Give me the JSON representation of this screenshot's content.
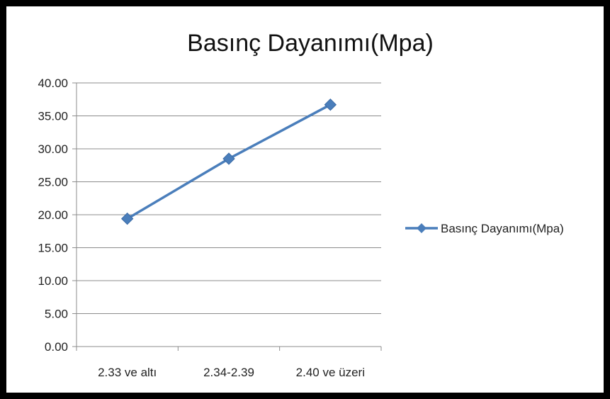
{
  "chart_data": {
    "type": "line",
    "title": "Basınç Dayanımı(Mpa)",
    "xlabel": "",
    "ylabel": "",
    "categories": [
      "2.33 ve altı",
      "2.34-2.39",
      "2.40 ve üzeri"
    ],
    "series": [
      {
        "name": "Basınç Dayanımı(Mpa)",
        "values": [
          19.4,
          28.5,
          36.7
        ],
        "color": "#4a7ebb",
        "marker": "diamond"
      }
    ],
    "ylim": [
      0,
      40
    ],
    "ytick_step": 5,
    "ytick_labels": [
      "0.00",
      "5.00",
      "10.00",
      "15.00",
      "20.00",
      "25.00",
      "30.00",
      "35.00",
      "40.00"
    ],
    "grid": "horizontal",
    "legend_position": "right"
  }
}
